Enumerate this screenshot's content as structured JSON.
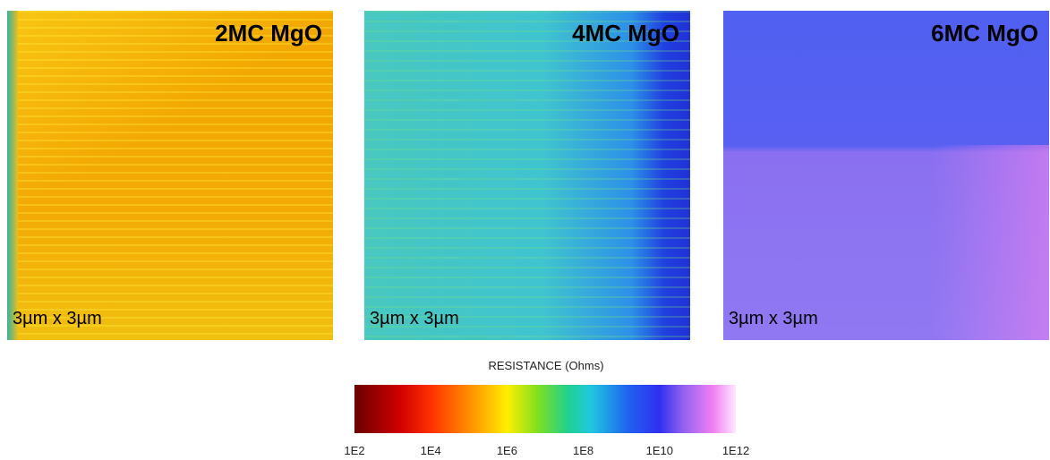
{
  "panels": [
    {
      "title": "2MC MgO",
      "scale": "3µm x 3µm"
    },
    {
      "title": "4MC MgO",
      "scale": "3µm x 3µm"
    },
    {
      "title": "6MC MgO",
      "scale": "3µm x 3µm"
    }
  ],
  "colorbar": {
    "title": "RESISTANCE (Ohms)",
    "ticks": [
      "1E2",
      "1E4",
      "1E6",
      "1E8",
      "1E10",
      "1E12"
    ]
  }
}
